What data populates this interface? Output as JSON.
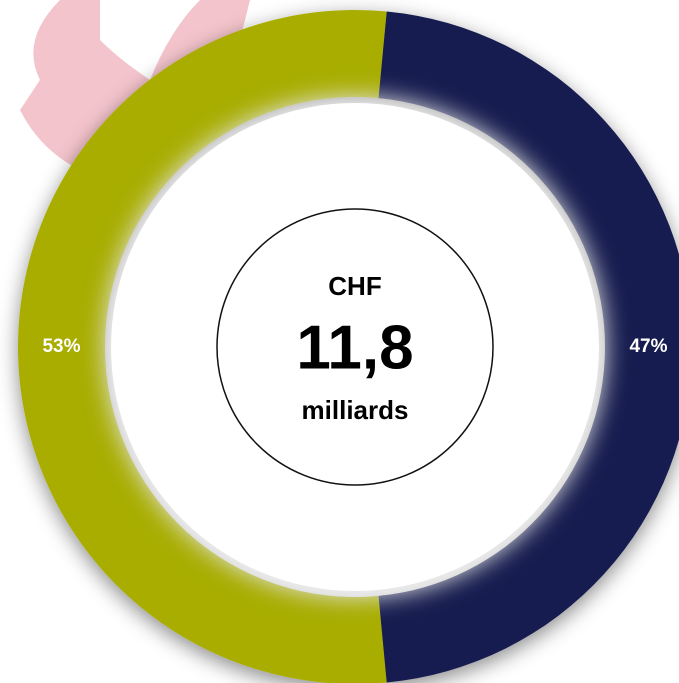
{
  "chart_data": {
    "type": "donut",
    "values": [
      53,
      47
    ],
    "value_labels": [
      "53%",
      "47%"
    ],
    "colors": [
      "#a8ad00",
      "#161d4f"
    ],
    "center_label": [
      "CHF",
      "11,8",
      "milliards"
    ]
  }
}
